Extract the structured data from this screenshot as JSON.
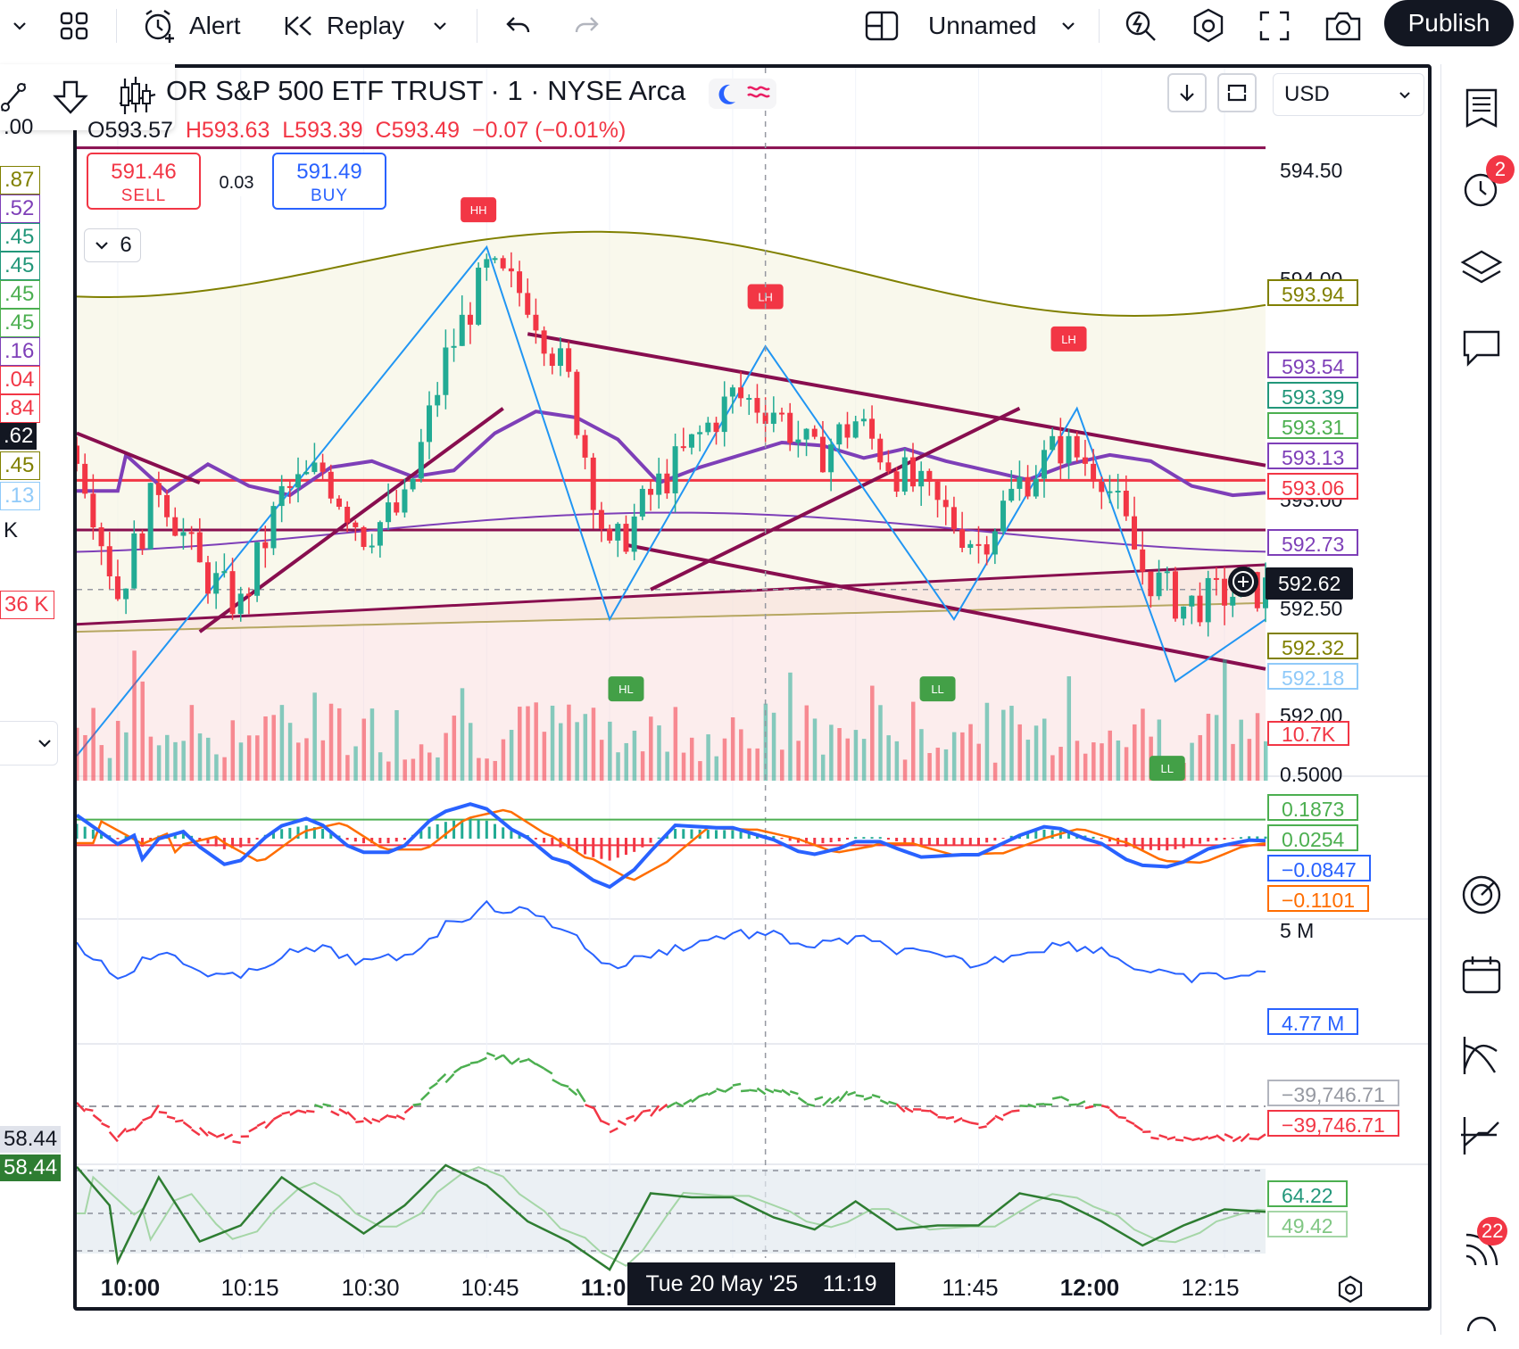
{
  "toolbar": {
    "alert_label": "Alert",
    "replay_label": "Replay",
    "layout_name": "Unnamed",
    "publish_label": "Publish"
  },
  "header": {
    "symbol_title": "OR S&P 500 ETF TRUST · 1 · NYSE Arca",
    "ohlc": {
      "open": "O593.57",
      "high": "H593.63",
      "low": "L593.39",
      "close": "C593.49",
      "change": "−0.07 (−0.01%)"
    },
    "currency": "USD",
    "indicator_count": "6"
  },
  "trade": {
    "sell_price": "591.46",
    "sell_label": "SELL",
    "spread": "0.03",
    "buy_price": "591.49",
    "buy_label": "BUY"
  },
  "price_axis": {
    "ticks": [
      "594.50",
      "594.00",
      "593.00",
      "592.50",
      "592.00"
    ],
    "labels": [
      {
        "text": "593.94",
        "color": "#808000"
      },
      {
        "text": "593.54",
        "color": "#7e3fb8"
      },
      {
        "text": "593.39",
        "color": "#22977a"
      },
      {
        "text": "593.31",
        "color": "#4caf50"
      },
      {
        "text": "593.13",
        "color": "#7e3fb8"
      },
      {
        "text": "593.06",
        "color": "#f23645"
      },
      {
        "text": "592.73",
        "color": "#7e3fb8"
      },
      {
        "text": "592.50",
        "color": "#131722"
      },
      {
        "text": "592.32",
        "color": "#808000"
      },
      {
        "text": "592.18",
        "color": "#90caf9"
      },
      {
        "text": "10.7K",
        "color": "#f23645"
      }
    ],
    "crosshair_price": "592.62"
  },
  "macd_axis": {
    "top": "0.5000",
    "labels": [
      {
        "text": "0.1873",
        "color": "#4caf50"
      },
      {
        "text": "0.0254",
        "color": "#4caf50"
      },
      {
        "text": "−0.0847",
        "color": "#2962ff"
      },
      {
        "text": "−0.1101",
        "color": "#ff6d00"
      }
    ]
  },
  "obv_axis": {
    "top": "5 M",
    "value": "4.77 M"
  },
  "cvd_axis": {
    "gray_value": "−39,746.71",
    "red_value": "−39,746.71"
  },
  "rsi_axis": {
    "v1": "64.22",
    "v2": "49.42"
  },
  "time_axis": {
    "ticks": [
      "10:00",
      "10:15",
      "10:30",
      "10:45",
      "11:0",
      "11:45",
      "12:00",
      "12:15"
    ],
    "crosshair_time": "Tue 20 May '25    11:19"
  },
  "pattern_labels": [
    "HH",
    "LH",
    "LH",
    "HL",
    "LL",
    "LL"
  ],
  "left_strip": {
    "labels": [
      ".00",
      ".87",
      ".52",
      ".45",
      ".45",
      ".45",
      ".45",
      ".16",
      ".04",
      ".84",
      ".62",
      ".45",
      ".13",
      "K",
      "36 K",
      "58.44",
      "58.44"
    ]
  },
  "right_sidebar": {
    "alerts_badge": "2",
    "notifications_badge": "22"
  },
  "colors": {
    "up": "#22ab94",
    "down": "#f23645",
    "trendline": "#880e4f",
    "accent": "#2962ff"
  },
  "chart_data": {
    "type": "candlestick",
    "symbol": "OR S&P 500 ETF TRUST",
    "interval": "1",
    "x_range": [
      "09:55",
      "12:20"
    ],
    "y_range": [
      591.85,
      594.6
    ],
    "close_anchors": [
      [
        "09:55",
        593.2
      ],
      [
        "10:00",
        592.6
      ],
      [
        "10:05",
        593.05
      ],
      [
        "10:10",
        592.7
      ],
      [
        "10:15",
        592.55
      ],
      [
        "10:20",
        593.0
      ],
      [
        "10:25",
        593.1
      ],
      [
        "10:30",
        592.85
      ],
      [
        "10:35",
        592.95
      ],
      [
        "10:40",
        593.55
      ],
      [
        "10:45",
        593.9
      ],
      [
        "10:50",
        593.8
      ],
      [
        "10:55",
        593.45
      ],
      [
        "11:00",
        592.75
      ],
      [
        "11:05",
        593.0
      ],
      [
        "11:10",
        593.2
      ],
      [
        "11:15",
        593.4
      ],
      [
        "11:20",
        593.35
      ],
      [
        "11:25",
        593.15
      ],
      [
        "11:30",
        593.3
      ],
      [
        "11:35",
        593.1
      ],
      [
        "11:40",
        592.95
      ],
      [
        "11:45",
        592.8
      ],
      [
        "11:50",
        593.05
      ],
      [
        "11:55",
        593.2
      ],
      [
        "12:00",
        593.1
      ],
      [
        "12:05",
        592.7
      ],
      [
        "12:10",
        592.55
      ],
      [
        "12:15",
        592.6
      ],
      [
        "12:20",
        592.62
      ]
    ]
  }
}
